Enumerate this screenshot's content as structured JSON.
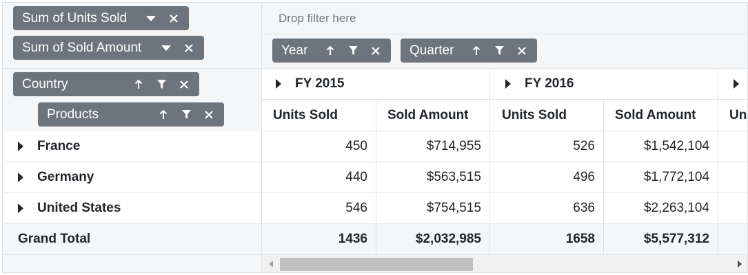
{
  "values_area": {
    "fields": [
      {
        "label": "Sum of Units Sold"
      },
      {
        "label": "Sum of Sold Amount"
      }
    ]
  },
  "filter_area": {
    "placeholder": "Drop filter here"
  },
  "column_fields": [
    {
      "label": "Year"
    },
    {
      "label": "Quarter"
    }
  ],
  "row_fields": [
    {
      "label": "Country"
    },
    {
      "label": "Products"
    }
  ],
  "column_headers": {
    "years": [
      "FY 2015",
      "FY 2016"
    ],
    "measures": [
      "Units Sold",
      "Sold Amount",
      "Units Sold",
      "Sold Amount",
      "Un"
    ]
  },
  "rows": [
    {
      "label": "France",
      "cells": [
        "450",
        "$714,955",
        "526",
        "$1,542,104"
      ]
    },
    {
      "label": "Germany",
      "cells": [
        "440",
        "$563,515",
        "496",
        "$1,772,104"
      ]
    },
    {
      "label": "United States",
      "cells": [
        "546",
        "$754,515",
        "636",
        "$2,263,104"
      ]
    }
  ],
  "grand_total": {
    "label": "Grand Total",
    "cells": [
      "1436",
      "$2,032,985",
      "1658",
      "$5,577,312"
    ]
  },
  "icons": {
    "dropdown": "caret-down-icon",
    "sort": "arrow-up-icon",
    "filter": "funnel-icon",
    "remove": "close-icon",
    "expand": "caret-right-icon"
  },
  "colors": {
    "pill": "#6c757d",
    "header_bg": "#f5f6f8",
    "border": "#dee2e6"
  }
}
